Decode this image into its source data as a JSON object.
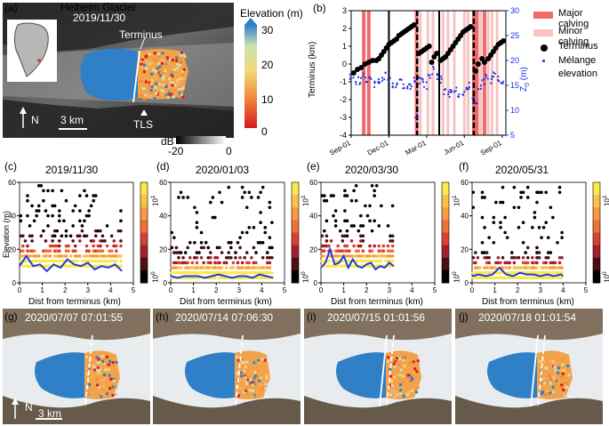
{
  "panel_a": {
    "label": "(a)",
    "site": "Helheim Glacier",
    "date": "2019/11/30",
    "terminus_label": "Terminus",
    "tls_label": "TLS",
    "north": "N",
    "scale": "3 km",
    "elev_cbar_title": "Elevation (m)",
    "elev_ticks": [
      "30",
      "20",
      "10",
      "0"
    ],
    "db_label": "dB",
    "db_ticks": [
      "-20",
      "0"
    ]
  },
  "panel_b": {
    "label": "(b)",
    "ylabel_left": "Terminus (km)",
    "ylabel_right": "Z",
    "ylabel_right_sub": "0",
    "ylabel_right_unit": " (m)",
    "legend": {
      "major": "Major calving",
      "minor": "Minor calving",
      "terminus": "Terminus",
      "melange_1": "Mélange",
      "melange_2": "elevation"
    },
    "colors": {
      "major": "#f06a6a",
      "minor": "#f7c3c3",
      "terminus": "#000000",
      "melange": "#1a2fe0"
    }
  },
  "hist_panels": [
    {
      "label": "(c)",
      "title": "2019/11/30"
    },
    {
      "label": "(d)",
      "title": "2020/01/03"
    },
    {
      "label": "(e)",
      "title": "2020/03/30"
    },
    {
      "label": "(f)",
      "title": "2020/05/31"
    }
  ],
  "hist_axes": {
    "xlabel": "Dist from terminus (km)",
    "ylabel": "Elevation (m)",
    "cbar_top": "10",
    "cbar_top_exp": "1",
    "cbar_bot": "10",
    "cbar_bot_exp": "0"
  },
  "photo_panels": [
    {
      "label": "(g)",
      "stamp": "2020/07/07 07:01:55"
    },
    {
      "label": "(h)",
      "stamp": "2020/07/14 07:06:30"
    },
    {
      "label": "(i)",
      "stamp": "2020/07/15 01:01:56"
    },
    {
      "label": "(j)",
      "stamp": "2020/07/18 01:01:54"
    }
  ],
  "photo_north": "N",
  "photo_scale": "3 km",
  "chart_data": [
    {
      "type": "scatter",
      "panel": "(b)",
      "x_labels": [
        "Sep-01",
        "Dec-01",
        "Mar-01",
        "Jun-01",
        "Sep-01"
      ],
      "x_tick_months": [
        0,
        3,
        6,
        9,
        12
      ],
      "xlim_months": [
        0,
        12.3
      ],
      "ylabel": "Terminus (km)",
      "ylim": [
        -4,
        3
      ],
      "yticks": [
        -4,
        -3,
        -2,
        -1,
        0,
        1,
        2,
        3
      ],
      "ylabel_right": "Z0 (m)",
      "ylim_right": [
        5,
        30
      ],
      "yticks_right": [
        5,
        10,
        15,
        20,
        25,
        30
      ],
      "major_calving_months": [
        1.0,
        1.4,
        5.2,
        9.75,
        10.0,
        10.6
      ],
      "minor_calving_months": [
        5.5,
        6.1,
        6.5,
        7.3,
        7.7,
        8.2,
        9.0,
        9.3,
        10.3,
        10.9,
        11.2,
        11.6
      ],
      "black_lines_months": [
        3.0,
        7.0
      ],
      "dashed_lines_months": [
        5.25,
        9.75
      ],
      "terminus_series": {
        "name": "Terminus",
        "months": [
          0.2,
          0.5,
          0.8,
          1.1,
          1.4,
          1.7,
          2.0,
          2.2,
          2.4,
          2.6,
          2.8,
          3.0,
          3.2,
          3.4,
          3.6,
          3.8,
          4.0,
          4.2,
          4.4,
          4.6,
          4.8,
          5.0,
          5.4,
          5.6,
          5.8,
          6.0,
          6.2,
          6.4,
          6.6,
          6.8,
          7.1,
          7.3,
          7.5,
          7.7,
          7.9,
          8.1,
          8.3,
          8.5,
          8.7,
          8.9,
          9.1,
          9.3,
          9.5,
          9.9,
          10.1,
          10.4,
          10.6,
          10.9,
          11.1,
          11.3,
          11.5,
          11.7,
          11.9,
          12.1
        ],
        "km": [
          -0.5,
          -0.3,
          -0.2,
          0.0,
          0.1,
          0.2,
          0.2,
          0.3,
          0.5,
          0.7,
          0.9,
          1.1,
          1.2,
          1.3,
          1.4,
          1.6,
          1.7,
          1.8,
          1.9,
          2.0,
          2.1,
          2.2,
          0.6,
          0.7,
          0.8,
          0.9,
          1.0,
          0.1,
          0.4,
          0.6,
          0.2,
          0.3,
          0.4,
          0.6,
          0.8,
          1.0,
          1.2,
          1.4,
          1.6,
          1.8,
          1.9,
          2.0,
          2.1,
          -0.4,
          0.0,
          0.3,
          0.1,
          0.3,
          0.5,
          0.7,
          0.9,
          1.1,
          1.2,
          1.3
        ]
      },
      "melange_series": {
        "name": "Mélange elevation",
        "months": [
          0.0,
          0.3,
          0.6,
          0.9,
          1.2,
          1.5,
          1.8,
          2.1,
          2.4,
          2.7,
          3.0,
          3.3,
          3.6,
          3.9,
          4.2,
          4.5,
          4.8,
          5.1,
          5.2,
          5.4,
          5.6,
          5.9,
          6.2,
          6.5,
          6.8,
          7.1,
          7.4,
          7.7,
          8.0,
          8.3,
          8.6,
          8.9,
          9.2,
          9.5,
          9.7,
          9.9,
          10.2,
          10.5,
          10.8,
          11.1,
          11.4,
          11.7,
          12.0
        ],
        "z0_m": [
          17,
          16,
          16,
          17,
          16,
          16,
          15,
          16,
          16,
          17,
          16,
          15,
          15,
          16,
          15,
          15,
          15,
          16,
          9,
          16,
          16,
          15,
          17,
          18,
          17,
          16,
          14,
          13,
          14,
          14,
          13,
          13,
          14,
          15,
          13,
          11,
          15,
          16,
          17,
          16,
          17,
          16,
          16
        ]
      }
    },
    {
      "type": "scatter",
      "panel": "(c)",
      "title": "2019/11/30",
      "xlabel": "Dist from terminus (km)",
      "ylabel": "Elevation (m)",
      "xlim": [
        0,
        5
      ],
      "xticks": [
        0,
        1,
        2,
        3,
        4,
        5
      ],
      "ylim": [
        0,
        60
      ],
      "yticks": [
        0,
        20,
        40,
        60
      ],
      "extent_km": 4.5,
      "max_elev_m": 60,
      "median_line": {
        "x": [
          0,
          0.3,
          0.6,
          0.9,
          1.2,
          1.5,
          1.8,
          2.1,
          2.4,
          2.7,
          3.0,
          3.3,
          3.6,
          3.9,
          4.2,
          4.5
        ],
        "y": [
          10,
          16,
          10,
          11,
          7,
          11,
          9,
          14,
          11,
          10,
          12,
          8,
          10,
          9,
          11,
          7
        ]
      }
    },
    {
      "type": "scatter",
      "panel": "(d)",
      "title": "2020/01/03",
      "xlabel": "Dist from terminus (km)",
      "ylabel": "Elevation (m)",
      "xlim": [
        0,
        5
      ],
      "xticks": [
        0,
        1,
        2,
        3,
        4,
        5
      ],
      "ylim": [
        0,
        60
      ],
      "yticks": [
        0,
        20,
        40,
        60
      ],
      "extent_km": 4.5,
      "max_elev_m": 58,
      "median_line": {
        "x": [
          0,
          0.3,
          0.6,
          0.9,
          1.2,
          1.5,
          1.8,
          2.1,
          2.4,
          2.7,
          3.0,
          3.3,
          3.6,
          3.9,
          4.2,
          4.5
        ],
        "y": [
          4,
          3,
          4,
          4,
          4,
          3,
          4,
          5,
          4,
          3,
          4,
          4,
          3,
          5,
          4,
          3
        ]
      }
    },
    {
      "type": "scatter",
      "panel": "(e)",
      "title": "2020/03/30",
      "xlabel": "Dist from terminus (km)",
      "ylabel": "Elevation (m)",
      "xlim": [
        0,
        5
      ],
      "xticks": [
        0,
        1,
        2,
        3,
        4,
        5
      ],
      "ylim": [
        0,
        60
      ],
      "yticks": [
        0,
        20,
        40,
        60
      ],
      "extent_km": 3.2,
      "max_elev_m": 60,
      "median_line": {
        "x": [
          0,
          0.2,
          0.4,
          0.6,
          0.8,
          1.0,
          1.2,
          1.4,
          1.6,
          1.8,
          2.0,
          2.2,
          2.4,
          2.6,
          2.8,
          3.0,
          3.2
        ],
        "y": [
          9,
          12,
          20,
          11,
          12,
          16,
          9,
          14,
          10,
          9,
          11,
          12,
          8,
          10,
          9,
          12,
          10
        ]
      }
    },
    {
      "type": "scatter",
      "panel": "(f)",
      "title": "2020/05/31",
      "xlabel": "Dist from terminus (km)",
      "ylabel": "Elevation (m)",
      "xlim": [
        0,
        5
      ],
      "xticks": [
        0,
        1,
        2,
        3,
        4,
        5
      ],
      "ylim": [
        0,
        60
      ],
      "yticks": [
        0,
        20,
        40,
        60
      ],
      "extent_km": 4.0,
      "max_elev_m": 58,
      "median_line": {
        "x": [
          0,
          0.3,
          0.6,
          0.9,
          1.2,
          1.5,
          1.8,
          2.1,
          2.4,
          2.7,
          3.0,
          3.3,
          3.6,
          3.9,
          4.0
        ],
        "y": [
          4,
          5,
          4,
          5,
          9,
          5,
          4,
          6,
          5,
          5,
          4,
          5,
          4,
          5,
          4
        ]
      }
    }
  ]
}
